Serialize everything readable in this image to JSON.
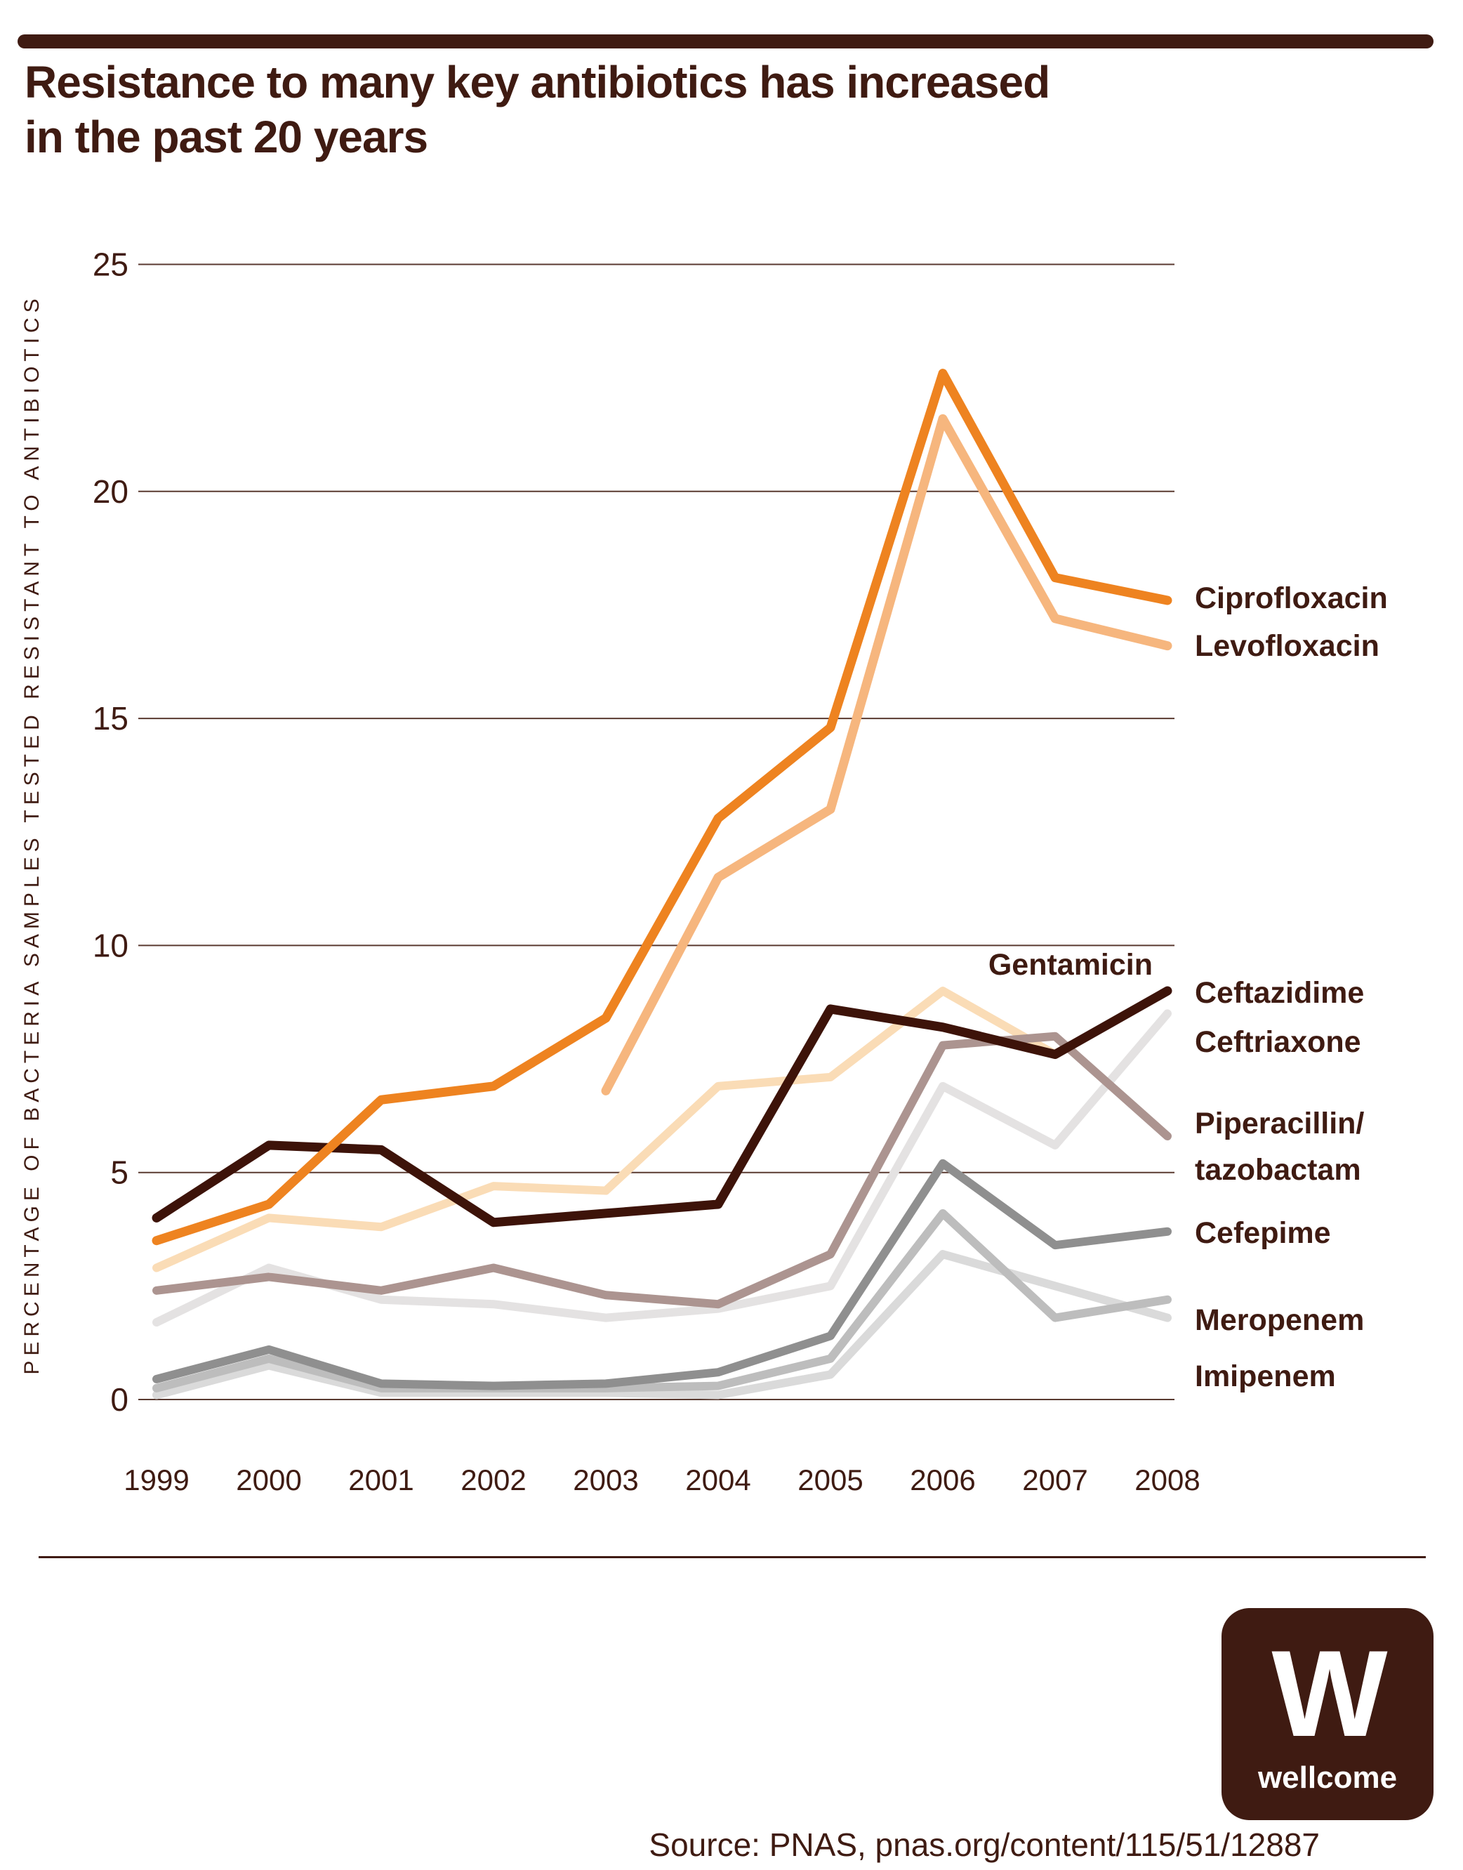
{
  "header": {
    "title_line1": "Resistance to many key antibiotics has increased",
    "title_line2": "in the past 20 years"
  },
  "chart_data": {
    "type": "line",
    "x": [
      1999,
      2000,
      2001,
      2002,
      2003,
      2004,
      2005,
      2006,
      2007,
      2008
    ],
    "ylabel": "PERCENTAGE OF BACTERIA SAMPLES TESTED RESISTANT TO ANTIBIOTICS",
    "xlabel": "",
    "title": "",
    "y_ticks": [
      0,
      5,
      10,
      15,
      20,
      25
    ],
    "ylim": [
      0,
      25
    ],
    "grid": "horizontal",
    "legend_position": "right-inline-labels",
    "grid_color": "#5A3A30",
    "axis_text_color": "#3F1B12",
    "series": [
      {
        "name": "Ciprofloxacin",
        "color": "#EE8320",
        "values": [
          3.5,
          4.3,
          6.6,
          6.9,
          8.4,
          12.8,
          14.8,
          22.6,
          18.1,
          17.6
        ]
      },
      {
        "name": "Levofloxacin",
        "color": "#F6B67E",
        "values": [
          null,
          null,
          null,
          null,
          6.8,
          11.5,
          13.0,
          21.6,
          17.2,
          16.6
        ]
      },
      {
        "name": "Gentamicin",
        "color": "#FADCB6",
        "values": [
          2.9,
          4.0,
          3.8,
          4.7,
          4.6,
          6.9,
          7.1,
          9.0,
          7.6,
          null
        ]
      },
      {
        "name": "Ceftazidime",
        "color": "#3D1309",
        "values": [
          4.0,
          5.6,
          5.5,
          3.9,
          4.1,
          4.3,
          8.6,
          8.2,
          7.6,
          9.0
        ]
      },
      {
        "name": "Ceftriaxone",
        "color": "#E4E2E2",
        "values": [
          1.7,
          2.9,
          2.2,
          2.1,
          1.8,
          2.0,
          2.5,
          6.9,
          5.6,
          8.5
        ]
      },
      {
        "name": "Piperacillin/tazobactam",
        "color": "#AC9490",
        "values": [
          2.4,
          2.7,
          2.4,
          2.9,
          2.3,
          2.1,
          3.2,
          7.8,
          8.0,
          5.8
        ]
      },
      {
        "name": "Cefepime",
        "color": "#8F8F8F",
        "values": [
          0.45,
          1.1,
          0.35,
          0.3,
          0.35,
          0.6,
          1.4,
          5.2,
          3.4,
          3.7
        ]
      },
      {
        "name": "Meropenem",
        "color": "#BDBDBD",
        "values": [
          0.25,
          0.9,
          0.25,
          0.25,
          0.25,
          0.3,
          0.9,
          4.1,
          1.8,
          2.2
        ]
      },
      {
        "name": "Imipenem",
        "color": "#DADADA",
        "values": [
          0.1,
          0.75,
          0.15,
          0.15,
          0.15,
          0.1,
          0.55,
          3.2,
          2.5,
          1.8
        ]
      }
    ]
  },
  "labels": {
    "piperacillin_line1": "Piperacillin/",
    "piperacillin_line2": "tazobactam"
  },
  "footer": {
    "source": "Source: PNAS, pnas.org/content/115/51/12887",
    "logo_letter": "W",
    "logo_word": "wellcome"
  }
}
